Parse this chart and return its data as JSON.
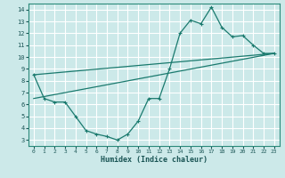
{
  "xlabel": "Humidex (Indice chaleur)",
  "bg_color": "#cce9e9",
  "grid_color": "#ffffff",
  "line_color": "#1a7a6e",
  "xlim": [
    -0.5,
    23.5
  ],
  "ylim": [
    2.5,
    14.5
  ],
  "xticks": [
    0,
    1,
    2,
    3,
    4,
    5,
    6,
    7,
    8,
    9,
    10,
    11,
    12,
    13,
    14,
    15,
    16,
    17,
    18,
    19,
    20,
    21,
    22,
    23
  ],
  "yticks": [
    3,
    4,
    5,
    6,
    7,
    8,
    9,
    10,
    11,
    12,
    13,
    14
  ],
  "line1_x": [
    0,
    1,
    2,
    3,
    4,
    5,
    6,
    7,
    8,
    9,
    10,
    11,
    12,
    13,
    14,
    15,
    16,
    17,
    18,
    19,
    20,
    21,
    22,
    23
  ],
  "line1_y": [
    8.5,
    6.5,
    6.2,
    6.2,
    5.0,
    3.8,
    3.5,
    3.3,
    3.0,
    3.5,
    4.6,
    6.5,
    6.5,
    9.0,
    12.0,
    13.1,
    12.8,
    14.2,
    12.5,
    11.7,
    11.8,
    11.0,
    10.3,
    10.3
  ],
  "line2_x": [
    0,
    23
  ],
  "line2_y": [
    8.5,
    10.3
  ],
  "line3_x": [
    0,
    23
  ],
  "line3_y": [
    6.5,
    10.3
  ]
}
